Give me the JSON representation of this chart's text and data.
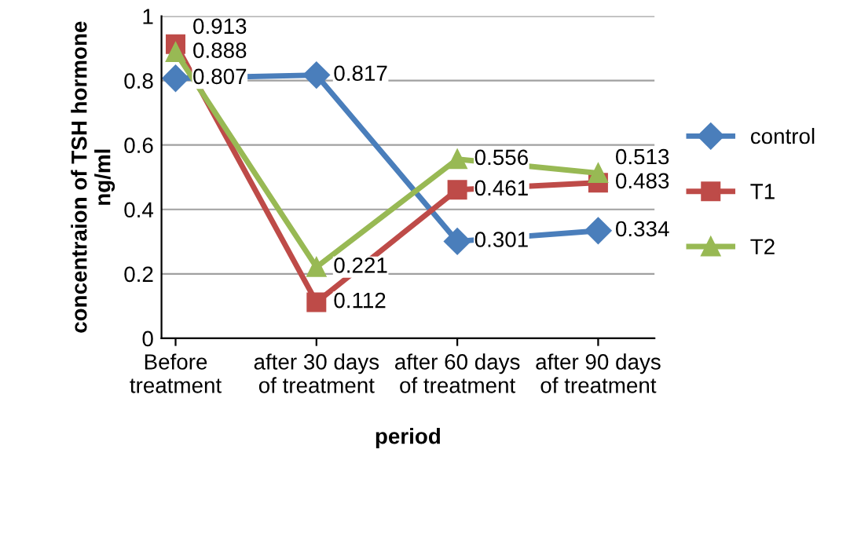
{
  "chart_data": {
    "type": "line",
    "xlabel": "period",
    "ylabel": "concentraion of TSH hormone ng/ml",
    "categories": [
      "Before treatment",
      "after 30 days of treatment",
      "after 60 days of treatment",
      "after 90 days of treatment"
    ],
    "series": [
      {
        "name": "control",
        "color": "#4a7ebb",
        "marker": "diamond",
        "values": [
          0.807,
          0.817,
          0.301,
          0.334
        ]
      },
      {
        "name": "T1",
        "color": "#be4b48",
        "marker": "square",
        "values": [
          0.913,
          0.112,
          0.461,
          0.483
        ]
      },
      {
        "name": "T2",
        "color": "#98b954",
        "marker": "triangle",
        "values": [
          0.888,
          0.221,
          0.556,
          0.513
        ]
      }
    ],
    "ylim": [
      0,
      1
    ],
    "yticks": [
      0,
      0.2,
      0.4,
      0.6,
      0.8,
      1
    ],
    "grid": "y",
    "legend": "right",
    "data_labels": true
  }
}
